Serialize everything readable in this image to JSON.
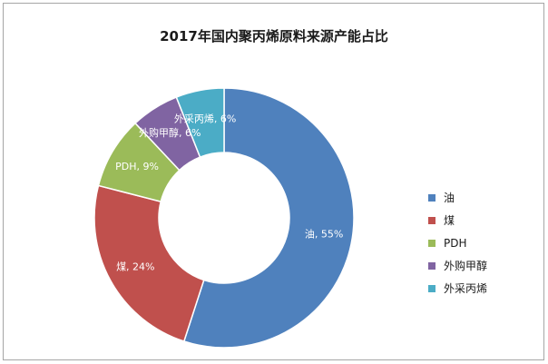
{
  "chart_data": {
    "type": "pie",
    "variant": "donut",
    "title": "2017年国内聚丙烯原料来源产能占比",
    "categories": [
      "油",
      "煤",
      "PDH",
      "外购甲醇",
      "外采丙烯"
    ],
    "values": [
      55,
      24,
      9,
      6,
      6
    ],
    "unit": "%",
    "data_labels": [
      "油, 55%",
      "煤, 24%",
      "PDH, 9%",
      "外购甲醇, 6%",
      "外采丙烯, 6%"
    ],
    "colors": [
      "#4f81bd",
      "#c0504d",
      "#9bbb59",
      "#8064a2",
      "#4bacc6"
    ],
    "legend": {
      "placement": "right",
      "entries": [
        "油",
        "煤",
        "PDH",
        "外购甲醇",
        "外采丙烯"
      ]
    }
  }
}
